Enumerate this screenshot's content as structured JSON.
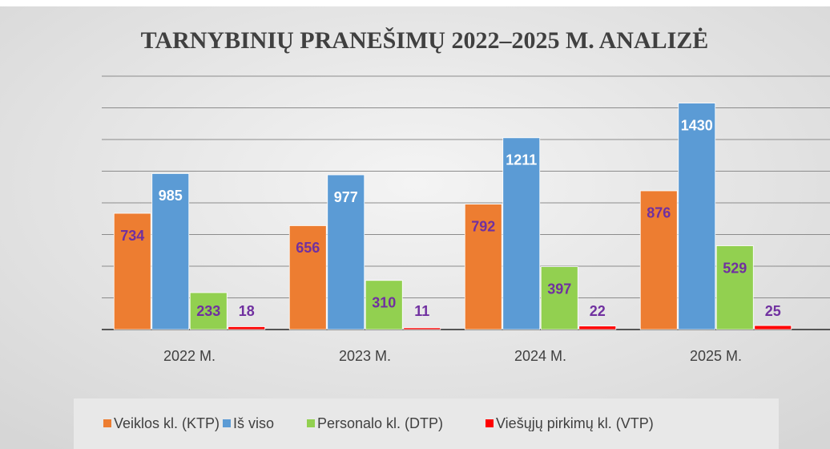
{
  "chart_data": {
    "type": "bar",
    "title": "TARNYBINIŲ PRANEŠIMŲ 2022–2025 M. ANALIZĖ",
    "categories": [
      "2022 M.",
      "2023 M.",
      "2024 M.",
      "2025 M."
    ],
    "series": [
      {
        "name": "Veiklos kl. (KTP)",
        "color": "#ed7d31",
        "label_color": "#7030a0",
        "values": [
          734,
          656,
          792,
          876
        ]
      },
      {
        "name": "Iš viso",
        "color": "#5b9bd5",
        "label_color": "#ffffff",
        "values": [
          985,
          977,
          1211,
          1430
        ]
      },
      {
        "name": "Personalo kl. (DTP)",
        "color": "#92d050",
        "label_color": "#7030a0",
        "values": [
          233,
          310,
          397,
          529
        ]
      },
      {
        "name": "Viešųjų pirkimų kl. (VTP)",
        "color": "#ff0000",
        "label_color": "#7030a0",
        "values": [
          18,
          11,
          22,
          25
        ]
      }
    ],
    "ylim": [
      0,
      1600
    ],
    "yticks": [
      0,
      200,
      400,
      600,
      800,
      1000,
      1200,
      1400,
      1600
    ],
    "grid": true,
    "legend": "bottom"
  }
}
